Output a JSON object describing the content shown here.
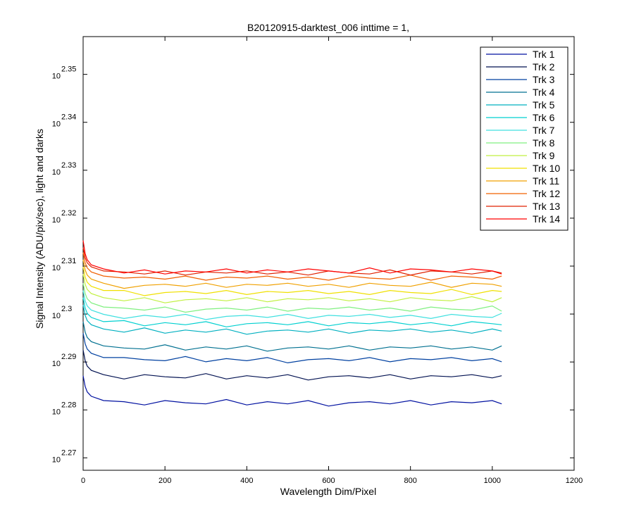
{
  "chart_data": {
    "type": "line",
    "title": "B20120915-darktest_006 inttime = 1,",
    "xlabel": "Wavelength Dim/Pixel",
    "ylabel": "Signal Intensity (ADU/pix/sec), light and darks",
    "log_y": true,
    "grid": false,
    "legend": "upper right",
    "xlim": [
      0,
      1200
    ],
    "xticks": [
      0,
      200,
      400,
      600,
      800,
      1000,
      1200
    ],
    "ylim": [
      185.1,
      227.97
    ],
    "yticks": [
      {
        "value": 186.209,
        "label": "10",
        "exponent": "2.27"
      },
      {
        "value": 190.546,
        "label": "10",
        "exponent": "2.28"
      },
      {
        "value": 194.984,
        "label": "10",
        "exponent": "2.29"
      },
      {
        "value": 199.526,
        "label": "10",
        "exponent": "2.3"
      },
      {
        "value": 204.174,
        "label": "10",
        "exponent": "2.31"
      },
      {
        "value": 208.93,
        "label": "10",
        "exponent": "2.32"
      },
      {
        "value": 213.796,
        "label": "10",
        "exponent": "2.33"
      },
      {
        "value": 218.776,
        "label": "10",
        "exponent": "2.34"
      },
      {
        "value": 223.872,
        "label": "10",
        "exponent": "2.35"
      }
    ],
    "x": [
      0,
      5,
      10,
      20,
      50,
      100,
      150,
      200,
      250,
      300,
      350,
      400,
      450,
      500,
      550,
      600,
      650,
      700,
      750,
      800,
      850,
      900,
      950,
      1000,
      1023
    ],
    "series": [
      {
        "name": "Trk 1",
        "color": "#0010a0",
        "values": [
          193.7,
          192.7,
          192.2,
          191.8,
          191.4,
          191.3,
          191.0,
          191.4,
          191.2,
          191.1,
          191.5,
          191.0,
          191.3,
          191.1,
          191.4,
          190.9,
          191.2,
          191.3,
          191.1,
          191.4,
          191.0,
          191.3,
          191.2,
          191.4,
          191.1
        ]
      },
      {
        "name": "Trk 2",
        "color": "#001050",
        "values": [
          196.1,
          195.1,
          194.6,
          194.2,
          193.8,
          193.4,
          193.8,
          193.6,
          193.5,
          193.9,
          193.4,
          193.7,
          193.5,
          193.8,
          193.3,
          193.6,
          193.7,
          193.5,
          193.8,
          193.4,
          193.7,
          193.6,
          193.8,
          193.5,
          193.7
        ]
      },
      {
        "name": "Trk 3",
        "color": "#0040a0",
        "values": [
          197.7,
          196.7,
          196.2,
          195.8,
          195.4,
          195.4,
          195.2,
          195.1,
          195.5,
          195.0,
          195.3,
          195.1,
          195.4,
          194.9,
          195.2,
          195.3,
          195.1,
          195.4,
          195.0,
          195.3,
          195.2,
          195.4,
          195.1,
          195.3,
          195.0
        ]
      },
      {
        "name": "Trk 4",
        "color": "#007090",
        "values": [
          198.8,
          197.8,
          197.3,
          196.9,
          196.5,
          196.3,
          196.2,
          196.6,
          196.1,
          196.4,
          196.2,
          196.5,
          196.0,
          196.3,
          196.4,
          196.2,
          196.5,
          196.1,
          196.4,
          196.3,
          196.5,
          196.2,
          196.4,
          196.1,
          196.5
        ]
      },
      {
        "name": "Trk 5",
        "color": "#00b0c0",
        "values": [
          200.4,
          199.4,
          198.9,
          198.5,
          198.1,
          197.8,
          198.2,
          197.7,
          198.0,
          197.8,
          198.1,
          197.6,
          197.9,
          198.0,
          197.8,
          198.1,
          197.7,
          198.0,
          197.9,
          198.1,
          197.8,
          198.0,
          197.7,
          198.1,
          197.9
        ]
      },
      {
        "name": "Trk 6",
        "color": "#00d0d0",
        "values": [
          201.1,
          200.1,
          199.6,
          199.2,
          198.8,
          198.9,
          198.4,
          198.7,
          198.5,
          198.8,
          198.3,
          198.6,
          198.7,
          198.5,
          198.8,
          198.4,
          198.7,
          198.6,
          198.8,
          198.5,
          198.7,
          198.4,
          198.8,
          198.6,
          198.5
        ]
      },
      {
        "name": "Trk 7",
        "color": "#40e0e0",
        "values": [
          201.8,
          200.8,
          200.3,
          199.9,
          199.5,
          199.1,
          199.4,
          199.2,
          199.5,
          199.0,
          199.3,
          199.4,
          199.2,
          199.5,
          199.1,
          199.4,
          199.3,
          199.5,
          199.2,
          199.4,
          199.1,
          199.5,
          199.3,
          199.2,
          199.6
        ]
      },
      {
        "name": "Trk 8",
        "color": "#80f080",
        "values": [
          202.5,
          201.5,
          201.0,
          200.6,
          200.2,
          200.1,
          199.9,
          200.2,
          199.7,
          200.0,
          200.1,
          199.9,
          200.2,
          199.8,
          200.1,
          200.0,
          200.2,
          199.9,
          200.1,
          199.8,
          200.2,
          200.0,
          199.9,
          200.3,
          199.8
        ]
      },
      {
        "name": "Trk 9",
        "color": "#c0f040",
        "values": [
          203.4,
          202.4,
          201.9,
          201.5,
          201.1,
          200.8,
          201.1,
          200.6,
          200.9,
          201.0,
          200.8,
          201.1,
          200.7,
          201.0,
          200.9,
          201.1,
          200.8,
          201.0,
          200.7,
          201.1,
          200.9,
          200.8,
          201.2,
          200.7,
          201.1
        ]
      },
      {
        "name": "Trk 10",
        "color": "#f0e000",
        "values": [
          204.1,
          203.1,
          202.6,
          202.2,
          201.8,
          201.8,
          201.3,
          201.6,
          201.7,
          201.5,
          201.8,
          201.4,
          201.7,
          201.6,
          201.8,
          201.5,
          201.7,
          201.4,
          201.8,
          201.6,
          201.5,
          201.9,
          201.4,
          201.8,
          201.7
        ]
      },
      {
        "name": "Trk 11",
        "color": "#f0a000",
        "values": [
          204.8,
          203.8,
          203.3,
          202.9,
          202.5,
          202.0,
          202.3,
          202.4,
          202.2,
          202.5,
          202.1,
          202.4,
          202.3,
          202.5,
          202.2,
          202.4,
          202.1,
          202.5,
          202.3,
          202.2,
          202.6,
          202.1,
          202.5,
          202.4,
          202.2
        ]
      },
      {
        "name": "Trk 12",
        "color": "#f06000",
        "values": [
          205.5,
          204.5,
          204.0,
          203.6,
          203.2,
          203.0,
          203.1,
          202.9,
          203.2,
          202.8,
          203.1,
          203.0,
          203.2,
          202.9,
          203.1,
          202.8,
          203.2,
          203.0,
          202.9,
          203.3,
          202.8,
          203.2,
          203.1,
          202.9,
          203.2
        ]
      },
      {
        "name": "Trk 13",
        "color": "#e02000",
        "values": [
          206.0,
          205.0,
          204.5,
          204.1,
          203.7,
          203.6,
          203.4,
          203.7,
          203.3,
          203.6,
          203.5,
          203.7,
          203.4,
          203.6,
          203.3,
          203.7,
          203.5,
          203.4,
          203.8,
          203.3,
          203.7,
          203.6,
          203.4,
          203.7,
          203.5
        ]
      },
      {
        "name": "Trk 14",
        "color": "#ff0000",
        "values": [
          206.7,
          205.4,
          204.8,
          204.3,
          203.9,
          203.5,
          203.8,
          203.4,
          203.7,
          203.6,
          203.9,
          203.5,
          203.8,
          203.6,
          203.9,
          203.7,
          203.5,
          204.0,
          203.5,
          203.9,
          203.8,
          203.6,
          203.9,
          203.7,
          203.4
        ]
      }
    ]
  }
}
